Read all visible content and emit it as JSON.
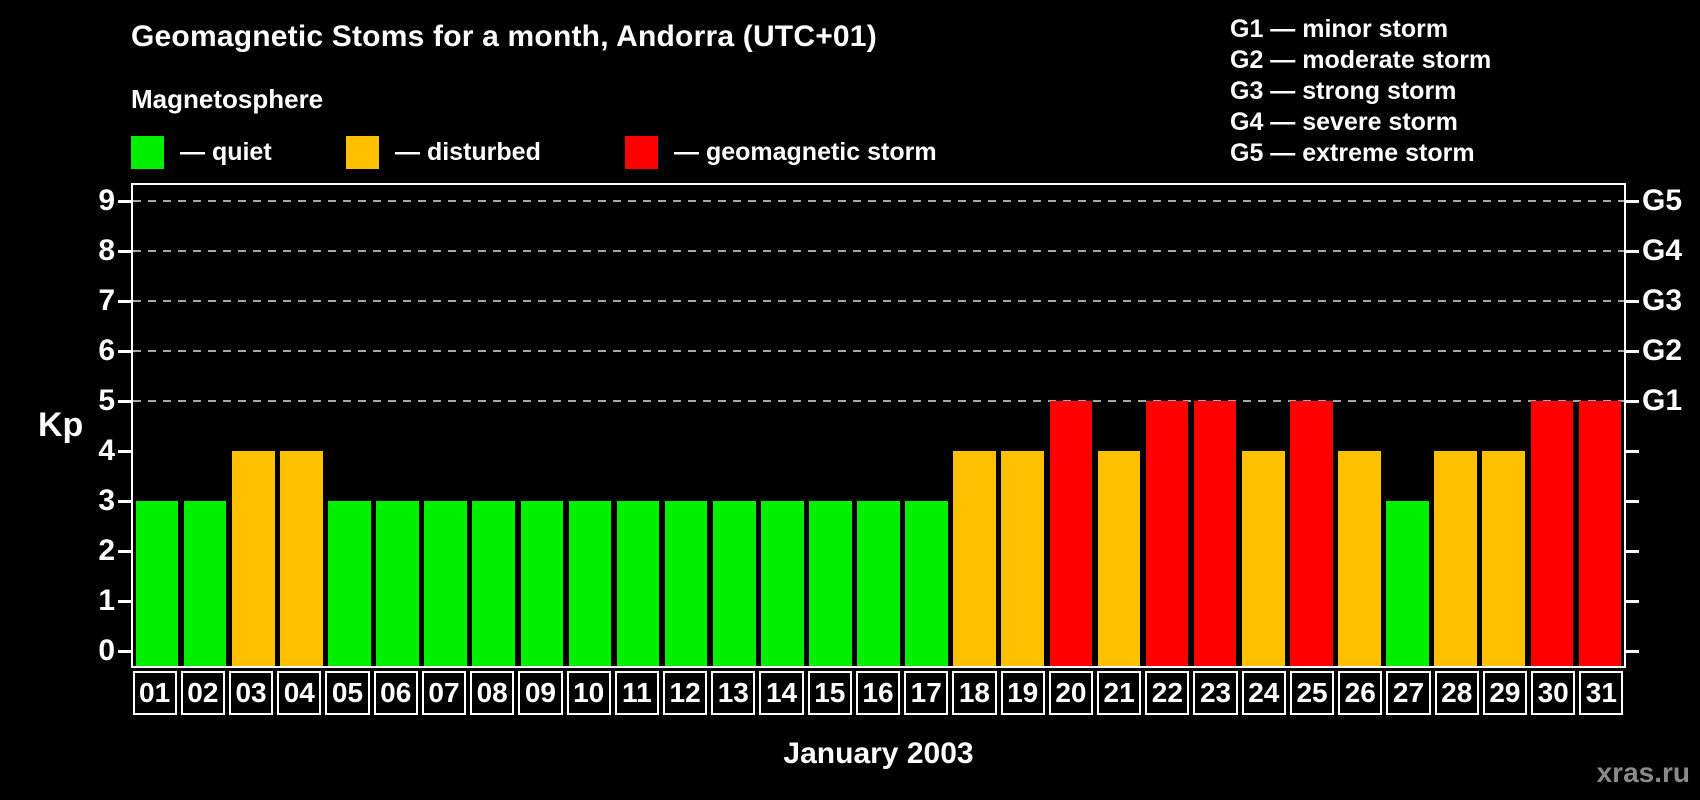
{
  "title": "Geomagnetic Stoms for a month, Andorra (UTC+01)",
  "subtitle": "Magnetosphere",
  "legend": {
    "items": [
      {
        "state": "quiet",
        "label": "— quiet",
        "color": "#00f000"
      },
      {
        "state": "disturbed",
        "label": "— disturbed",
        "color": "#ffc000"
      },
      {
        "state": "storm",
        "label": "— geomagnetic storm",
        "color": "#ff0000"
      }
    ]
  },
  "storm_scale_legend": {
    "lines": [
      "G1 — minor storm",
      "G2 — moderate storm",
      "G3 — strong storm",
      "G4 — severe storm",
      "G5 — extreme storm"
    ]
  },
  "watermark": "xras.ru",
  "chart_data": {
    "type": "bar",
    "title": "Geomagnetic Stoms for a month, Andorra (UTC+01)",
    "xlabel": "January 2003",
    "ylabel": "Kp",
    "ylim": [
      0,
      9
    ],
    "legend_position": "top-left",
    "grid": "horizontal dashed lines at Kp 5,6,7,8,9",
    "categories": [
      "01",
      "02",
      "03",
      "04",
      "05",
      "06",
      "07",
      "08",
      "09",
      "10",
      "11",
      "12",
      "13",
      "14",
      "15",
      "16",
      "17",
      "18",
      "19",
      "20",
      "21",
      "22",
      "23",
      "24",
      "25",
      "26",
      "27",
      "28",
      "29",
      "30",
      "31"
    ],
    "values": [
      3,
      3,
      4,
      4,
      3,
      3,
      3,
      3,
      3,
      3,
      3,
      3,
      3,
      3,
      3,
      3,
      3,
      4,
      4,
      5,
      4,
      5,
      5,
      4,
      5,
      4,
      3,
      4,
      4,
      5,
      5
    ],
    "states": [
      "quiet",
      "quiet",
      "disturbed",
      "disturbed",
      "quiet",
      "quiet",
      "quiet",
      "quiet",
      "quiet",
      "quiet",
      "quiet",
      "quiet",
      "quiet",
      "quiet",
      "quiet",
      "quiet",
      "quiet",
      "disturbed",
      "disturbed",
      "storm",
      "disturbed",
      "storm",
      "storm",
      "disturbed",
      "storm",
      "disturbed",
      "quiet",
      "disturbed",
      "disturbed",
      "storm",
      "storm"
    ],
    "y_ticks": [
      0,
      1,
      2,
      3,
      4,
      5,
      6,
      7,
      8,
      9
    ],
    "right_axis_labels": [
      {
        "label": "G1",
        "kp": 5
      },
      {
        "label": "G2",
        "kp": 6
      },
      {
        "label": "G3",
        "kp": 7
      },
      {
        "label": "G4",
        "kp": 8
      },
      {
        "label": "G5",
        "kp": 9
      }
    ],
    "gridline_levels": [
      5,
      6,
      7,
      8,
      9
    ],
    "colors": {
      "quiet": "#00f000",
      "disturbed": "#ffc000",
      "storm": "#ff0000"
    }
  }
}
